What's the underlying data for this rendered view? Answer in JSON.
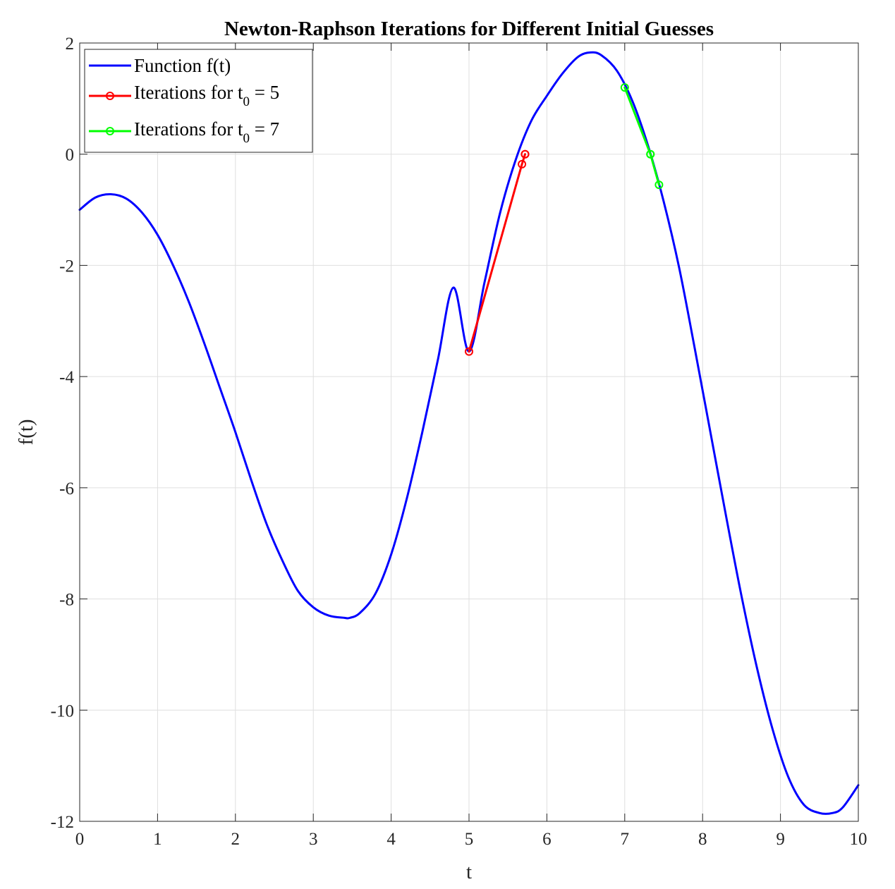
{
  "chart_data": {
    "type": "line",
    "title": "Newton-Raphson Iterations for Different Initial Guesses",
    "xlabel": "t",
    "ylabel": "f(t)",
    "xlim": [
      0,
      10
    ],
    "ylim": [
      -12,
      2
    ],
    "xticks": [
      0,
      1,
      2,
      3,
      4,
      5,
      6,
      7,
      8,
      9,
      10
    ],
    "yticks": [
      -12,
      -10,
      -8,
      -6,
      -4,
      -2,
      0,
      2
    ],
    "grid": true,
    "legend_position": "top-left",
    "series": [
      {
        "name": "Function f(t)",
        "color": "#0000ff",
        "marker": "none",
        "x": [
          0,
          0.2,
          0.4,
          0.6,
          0.8,
          1.0,
          1.2,
          1.4,
          1.6,
          1.8,
          2.0,
          2.2,
          2.4,
          2.6,
          2.8,
          3.0,
          3.2,
          3.4,
          3.47,
          3.6,
          3.8,
          4.0,
          4.2,
          4.4,
          4.6,
          4.8,
          5.0,
          5.2,
          5.4,
          5.6,
          5.8,
          6.0,
          6.2,
          6.4,
          6.56,
          6.7,
          6.9,
          7.1,
          7.3,
          7.5,
          7.7,
          7.9,
          8.1,
          8.3,
          8.5,
          8.7,
          8.9,
          9.1,
          9.3,
          9.5,
          9.67,
          9.8,
          10.0
        ],
        "y": [
          -1.0,
          -0.78,
          -0.72,
          -0.8,
          -1.05,
          -1.45,
          -2.0,
          -2.65,
          -3.4,
          -4.2,
          -5.0,
          -5.85,
          -6.65,
          -7.3,
          -7.85,
          -8.15,
          -8.3,
          -8.34,
          -8.34,
          -8.25,
          -7.9,
          -7.2,
          -6.2,
          -5.0,
          -3.7,
          -2.4,
          -3.55,
          -2.3,
          -1.05,
          -0.1,
          0.6,
          1.05,
          1.45,
          1.75,
          1.83,
          1.78,
          1.5,
          0.95,
          0.15,
          -0.85,
          -2.05,
          -3.5,
          -5.0,
          -6.5,
          -7.95,
          -9.25,
          -10.35,
          -11.2,
          -11.7,
          -11.85,
          -11.85,
          -11.75,
          -11.35
        ]
      },
      {
        "name": "Iterations for t",
        "name_subscript": "0",
        "name_suffix": " = 5",
        "color": "#ff0000",
        "marker": "o",
        "x": [
          5.0,
          5.68,
          5.72,
          5.72
        ],
        "y": [
          -3.55,
          -0.18,
          0.0,
          0.0
        ]
      },
      {
        "name": "Iterations for t",
        "name_subscript": "0",
        "name_suffix": " = 7",
        "color": "#00ff00",
        "marker": "o",
        "x": [
          7.0,
          7.33,
          7.33,
          7.44
        ],
        "y": [
          1.2,
          0.0,
          0.0,
          -0.55
        ]
      }
    ]
  }
}
